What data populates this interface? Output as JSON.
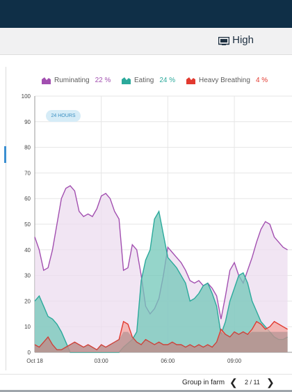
{
  "header": {
    "level_icon": "monitor-icon",
    "level_label": "High"
  },
  "legend": [
    {
      "name": "Ruminating",
      "pct": "22 %",
      "color": "#a24fb0"
    },
    {
      "name": "Eating",
      "pct": "24 %",
      "color": "#2ba99b"
    },
    {
      "name": "Heavy Breathing",
      "pct": "4 %",
      "color": "#e2392f"
    }
  ],
  "time_range_badge": "24 HOURS",
  "chart_data": {
    "type": "area",
    "y_ticks": [
      "0",
      "10",
      "20",
      "30",
      "40",
      "50",
      "60",
      "70",
      "80",
      "90",
      "100"
    ],
    "ylim": [
      0,
      100
    ],
    "x_ticks": [
      "Oct 18",
      "03:00",
      "06:00",
      "09:00"
    ],
    "x_hours": [
      0,
      3,
      6,
      9
    ],
    "xlim": [
      0,
      11.6
    ],
    "grid": true,
    "series": [
      {
        "name": "Ruminating",
        "color": "#a24fb0",
        "fill": "#ecdcef",
        "points": [
          [
            0,
            45
          ],
          [
            0.2,
            40
          ],
          [
            0.4,
            32
          ],
          [
            0.6,
            33
          ],
          [
            0.8,
            40
          ],
          [
            1.0,
            50
          ],
          [
            1.2,
            60
          ],
          [
            1.4,
            64
          ],
          [
            1.6,
            65
          ],
          [
            1.8,
            63
          ],
          [
            2.0,
            55
          ],
          [
            2.2,
            53
          ],
          [
            2.4,
            54
          ],
          [
            2.6,
            53
          ],
          [
            2.8,
            56
          ],
          [
            3.0,
            61
          ],
          [
            3.2,
            62
          ],
          [
            3.4,
            60
          ],
          [
            3.6,
            55
          ],
          [
            3.8,
            52
          ],
          [
            4.0,
            32
          ],
          [
            4.2,
            33
          ],
          [
            4.4,
            42
          ],
          [
            4.6,
            40
          ],
          [
            4.8,
            30
          ],
          [
            5.0,
            18
          ],
          [
            5.2,
            15
          ],
          [
            5.4,
            17
          ],
          [
            5.6,
            21
          ],
          [
            5.8,
            30
          ],
          [
            6.0,
            41
          ],
          [
            6.2,
            39
          ],
          [
            6.4,
            37
          ],
          [
            6.6,
            35
          ],
          [
            6.8,
            32
          ],
          [
            7.0,
            28
          ],
          [
            7.2,
            27
          ],
          [
            7.4,
            28
          ],
          [
            7.6,
            26
          ],
          [
            7.8,
            27
          ],
          [
            8.0,
            25
          ],
          [
            8.2,
            22
          ],
          [
            8.4,
            13
          ],
          [
            8.6,
            22
          ],
          [
            8.8,
            32
          ],
          [
            9.0,
            35
          ],
          [
            9.2,
            30
          ],
          [
            9.4,
            27
          ],
          [
            9.6,
            32
          ],
          [
            9.8,
            37
          ],
          [
            10.0,
            43
          ],
          [
            10.2,
            48
          ],
          [
            10.4,
            51
          ],
          [
            10.6,
            50
          ],
          [
            10.8,
            45
          ],
          [
            11.0,
            43
          ],
          [
            11.2,
            41
          ],
          [
            11.4,
            40
          ]
        ]
      },
      {
        "name": "Eating",
        "color": "#2ba99b",
        "fill": "#72c7b8",
        "points": [
          [
            0,
            20
          ],
          [
            0.2,
            22
          ],
          [
            0.4,
            18
          ],
          [
            0.6,
            14
          ],
          [
            0.8,
            13
          ],
          [
            1.0,
            11
          ],
          [
            1.2,
            8
          ],
          [
            1.4,
            4
          ],
          [
            1.6,
            0
          ],
          [
            3.8,
            0
          ],
          [
            4.0,
            2
          ],
          [
            4.4,
            5
          ],
          [
            4.6,
            8
          ],
          [
            4.8,
            28
          ],
          [
            5.0,
            36
          ],
          [
            5.2,
            40
          ],
          [
            5.4,
            52
          ],
          [
            5.6,
            55
          ],
          [
            5.8,
            46
          ],
          [
            6.0,
            37
          ],
          [
            6.2,
            35
          ],
          [
            6.4,
            33
          ],
          [
            6.6,
            30
          ],
          [
            6.8,
            27
          ],
          [
            7.0,
            20
          ],
          [
            7.2,
            21
          ],
          [
            7.4,
            23
          ],
          [
            7.6,
            26
          ],
          [
            7.8,
            27
          ],
          [
            8.0,
            23
          ],
          [
            8.2,
            18
          ],
          [
            8.4,
            7
          ],
          [
            8.6,
            12
          ],
          [
            8.8,
            20
          ],
          [
            9.0,
            25
          ],
          [
            9.2,
            30
          ],
          [
            9.4,
            31
          ],
          [
            9.6,
            27
          ],
          [
            9.8,
            20
          ],
          [
            10.0,
            16
          ],
          [
            10.2,
            12
          ],
          [
            10.4,
            10
          ],
          [
            10.6,
            8
          ],
          [
            10.8,
            6
          ],
          [
            11.0,
            5
          ],
          [
            11.2,
            5
          ],
          [
            11.4,
            6
          ]
        ]
      },
      {
        "name": "Heavy Breathing",
        "color": "#e2392f",
        "fill": "#f3a5a0",
        "points": [
          [
            0,
            3
          ],
          [
            0.2,
            2
          ],
          [
            0.4,
            4
          ],
          [
            0.6,
            6
          ],
          [
            0.8,
            3
          ],
          [
            1.0,
            1
          ],
          [
            1.2,
            1
          ],
          [
            1.4,
            2
          ],
          [
            1.6,
            3
          ],
          [
            1.8,
            4
          ],
          [
            2.0,
            3
          ],
          [
            2.2,
            2
          ],
          [
            2.4,
            3
          ],
          [
            2.6,
            2
          ],
          [
            2.8,
            1
          ],
          [
            3.0,
            3
          ],
          [
            3.2,
            2
          ],
          [
            3.4,
            3
          ],
          [
            3.6,
            4
          ],
          [
            3.8,
            5
          ],
          [
            4.0,
            12
          ],
          [
            4.2,
            11
          ],
          [
            4.4,
            6
          ],
          [
            4.6,
            4
          ],
          [
            4.8,
            3
          ],
          [
            5.0,
            5
          ],
          [
            5.2,
            4
          ],
          [
            5.4,
            3
          ],
          [
            5.6,
            4
          ],
          [
            5.8,
            3
          ],
          [
            6.0,
            3
          ],
          [
            6.2,
            4
          ],
          [
            6.4,
            3
          ],
          [
            6.6,
            3
          ],
          [
            6.8,
            2
          ],
          [
            7.0,
            3
          ],
          [
            7.2,
            2
          ],
          [
            7.4,
            3
          ],
          [
            7.6,
            2
          ],
          [
            7.8,
            3
          ],
          [
            8.0,
            2
          ],
          [
            8.2,
            4
          ],
          [
            8.4,
            9
          ],
          [
            8.6,
            7
          ],
          [
            8.8,
            6
          ],
          [
            9.0,
            8
          ],
          [
            9.2,
            7
          ],
          [
            9.4,
            8
          ],
          [
            9.6,
            7
          ],
          [
            9.8,
            9
          ],
          [
            10.0,
            12
          ],
          [
            10.2,
            11
          ],
          [
            10.4,
            9
          ],
          [
            10.6,
            10
          ],
          [
            10.8,
            12
          ],
          [
            11.0,
            11
          ],
          [
            11.2,
            10
          ],
          [
            11.4,
            9
          ]
        ]
      }
    ]
  },
  "footer": {
    "group_label": "Group in farm",
    "page_label": "2 / 11",
    "prev_icon": "chevron-left-icon",
    "next_icon": "chevron-right-icon"
  }
}
